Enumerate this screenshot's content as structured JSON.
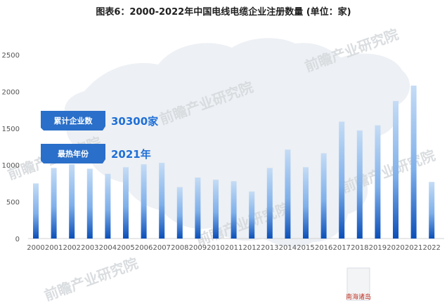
{
  "title": "图表6：2000-2022年中国电线电缆企业注册数量 (单位：家)",
  "callouts": [
    {
      "label": "累计企业数",
      "value": "30300家"
    },
    {
      "label": "最热年份",
      "value": "2021年"
    }
  ],
  "watermark": "前瞻产业研究院",
  "map_label": "南海诸岛",
  "colors": {
    "bar_top": "#c5dcf5",
    "bar_bottom": "#0b4fb8",
    "callout_bg": "#2a6fc9",
    "callout_text": "#1f6fd6"
  },
  "chart_data": {
    "type": "bar",
    "title": "图表6：2000-2022年中国电线电缆企业注册数量 (单位：家)",
    "xlabel": "",
    "ylabel": "",
    "ylim": [
      0,
      2500
    ],
    "yticks": [
      0,
      500,
      1000,
      1500,
      2000,
      2500
    ],
    "grid": false,
    "categories": [
      "2000",
      "2001",
      "2002",
      "2003",
      "2004",
      "2005",
      "2006",
      "2007",
      "2008",
      "2009",
      "2010",
      "2011",
      "2012",
      "2013",
      "2014",
      "2015",
      "2016",
      "2017",
      "2018",
      "2019",
      "2020",
      "2021",
      "2022"
    ],
    "values": [
      750,
      960,
      1010,
      950,
      880,
      970,
      1010,
      1030,
      700,
      830,
      800,
      780,
      640,
      960,
      1210,
      970,
      1160,
      1590,
      1470,
      1540,
      1870,
      2080,
      770
    ]
  }
}
